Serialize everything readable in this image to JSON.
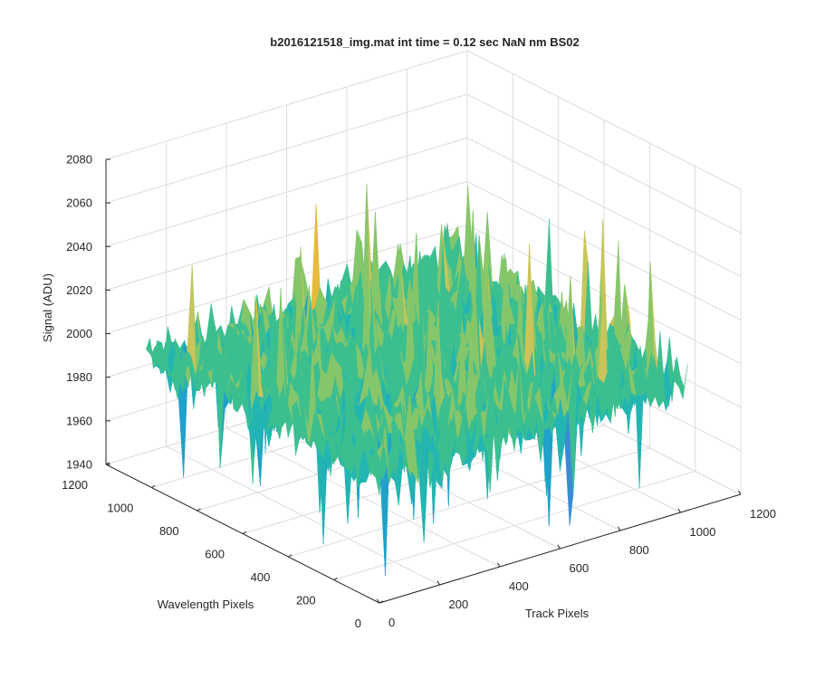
{
  "chart_data": {
    "type": "surface",
    "title": "b2016121518_img.mat int time = 0.12 sec  NaN nm BS02",
    "xlabel": "Track Pixels",
    "ylabel": "Wavelength Pixels",
    "zlabel": "Signal (ADU)",
    "xlim": [
      0,
      1200
    ],
    "ylim": [
      0,
      1200
    ],
    "zlim": [
      1940,
      2080
    ],
    "x_ticks": [
      "0",
      "200",
      "400",
      "600",
      "800",
      "1000",
      "1200"
    ],
    "y_ticks": [
      "0",
      "200",
      "400",
      "600",
      "800",
      "1000",
      "1200"
    ],
    "z_ticks": [
      "1940",
      "1960",
      "1980",
      "2000",
      "2020",
      "2040",
      "2060",
      "2080"
    ],
    "surface": {
      "data_extent_x": [
        0,
        1024
      ],
      "data_extent_y": [
        0,
        1024
      ],
      "mean_signal": 2000,
      "noise_std": 8,
      "signal_min": 1945,
      "signal_max": 2075,
      "colormap": [
        "#3b8bd4",
        "#1fa1c9",
        "#22b5b2",
        "#3cbf8f",
        "#86c66a",
        "#c9c55a",
        "#e8ba3c"
      ]
    },
    "grid": true
  }
}
